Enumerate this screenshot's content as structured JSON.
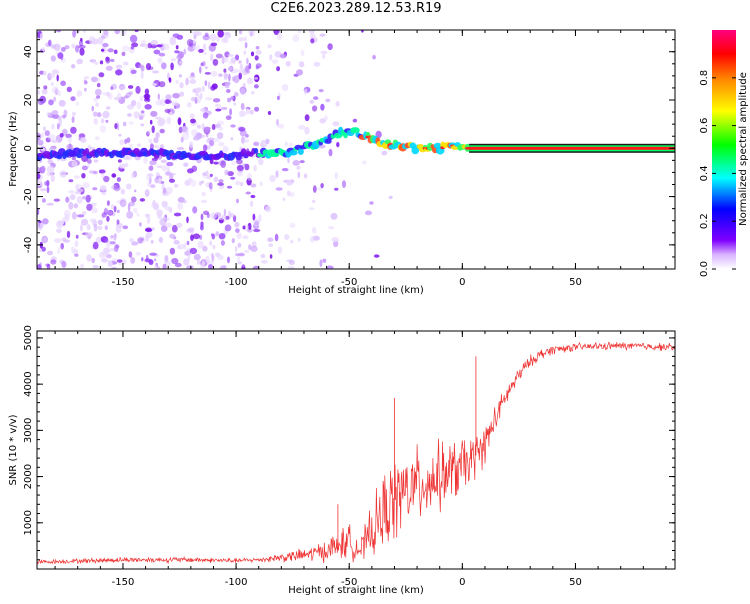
{
  "chart_data": [
    {
      "type": "heatmap",
      "title": "C2E6.2023.289.12.53.R19",
      "xlabel": "Height of straight line (km)",
      "ylabel": "Frequency (Hz)",
      "xlim": [
        -188,
        94
      ],
      "ylim": [
        -50,
        49
      ],
      "xticks": [
        "-150",
        "-100",
        "-50",
        "0",
        "50"
      ],
      "yticks": [
        "-40",
        "-20",
        "0",
        "20",
        "40"
      ],
      "colorbar": {
        "label": "Normalized spectral amplitude",
        "range": [
          0,
          1
        ],
        "ticks": [
          "0.0",
          "0.2",
          "0.4",
          "0.6",
          "0.8"
        ],
        "colors": [
          "#ffffff",
          "#d9b3ff",
          "#8000ff",
          "#0000ff",
          "#00ffff",
          "#00ff00",
          "#ffff00",
          "#ff8000",
          "#ff0000",
          "#ff0080"
        ]
      },
      "ridge": {
        "x": [
          -188,
          -160,
          -140,
          -120,
          -100,
          -90,
          -80,
          -70,
          -60,
          -55,
          -50,
          -45,
          -40,
          -35,
          -30,
          -25,
          -20,
          -15,
          -10,
          -5,
          0,
          2,
          94
        ],
        "y": [
          -3,
          -2,
          -2,
          -3,
          -3,
          -2,
          -2,
          0,
          3,
          6,
          7,
          6,
          4,
          2,
          1,
          1,
          0,
          0,
          0,
          1,
          1,
          0,
          0
        ]
      },
      "stable_band": {
        "x": [
          3,
          94
        ],
        "y": 0
      }
    },
    {
      "type": "line",
      "title": "",
      "xlabel": "Height of straight line (km)",
      "ylabel": "SNR (10 * v/v)",
      "xlim": [
        -188,
        94
      ],
      "ylim": [
        0,
        5150
      ],
      "xticks": [
        "-150",
        "-100",
        "-50",
        "0",
        "50"
      ],
      "yticks": [
        "1000",
        "2000",
        "3000",
        "4000",
        "5000"
      ],
      "series": [
        {
          "color": "#ee3333",
          "x": [
            -188,
            -150,
            -120,
            -100,
            -90,
            -80,
            -70,
            -60,
            -55,
            -50,
            -45,
            -40,
            -35,
            -30,
            -25,
            -20,
            -15,
            -10,
            -5,
            0,
            5,
            10,
            15,
            20,
            25,
            30,
            35,
            40,
            50,
            60,
            70,
            80,
            94
          ],
          "y": [
            150,
            200,
            200,
            180,
            200,
            250,
            300,
            400,
            500,
            600,
            400,
            800,
            1200,
            1500,
            1700,
            1800,
            1900,
            2000,
            2100,
            2200,
            2400,
            2700,
            3300,
            3800,
            4200,
            4500,
            4650,
            4750,
            4800,
            4820,
            4830,
            4820,
            4800
          ],
          "noise": [
            50,
            70,
            70,
            60,
            60,
            120,
            180,
            280,
            400,
            450,
            300,
            700,
            1000,
            1100,
            1000,
            1000,
            900,
            900,
            800,
            800,
            600,
            500,
            350,
            250,
            200,
            150,
            150,
            120,
            100,
            100,
            100,
            100,
            100
          ]
        }
      ],
      "annotations": [
        {
          "x": 6,
          "y": 4600
        },
        {
          "x": -30,
          "y": 3700
        },
        {
          "x": -55,
          "y": 1400
        }
      ]
    }
  ]
}
